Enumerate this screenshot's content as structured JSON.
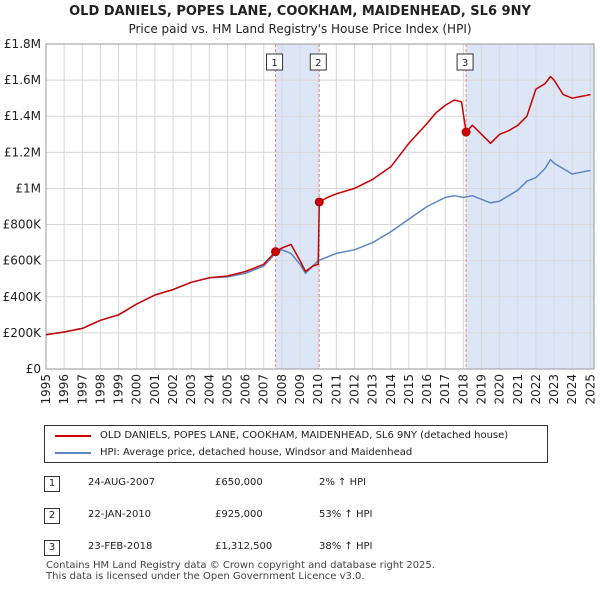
{
  "header": {
    "title": "OLD DANIELS, POPES LANE, COOKHAM, MAIDENHEAD, SL6 9NY",
    "subtitle": "Price paid vs. HM Land Registry's House Price Index (HPI)"
  },
  "legend": {
    "property_label": "OLD DANIELS, POPES LANE, COOKHAM, MAIDENHEAD, SL6 9NY (detached house)",
    "hpi_label": "HPI: Average price, detached house, Windsor and Maidenhead"
  },
  "sales": [
    {
      "num": "1",
      "date": "24-AUG-2007",
      "price": "£650,000",
      "hpi": "2% ↑ HPI"
    },
    {
      "num": "2",
      "date": "22-JAN-2010",
      "price": "£925,000",
      "hpi": "53% ↑ HPI"
    },
    {
      "num": "3",
      "date": "23-FEB-2018",
      "price": "£1,312,500",
      "hpi": "38% ↑ HPI"
    }
  ],
  "footer": {
    "line1": "Contains HM Land Registry data © Crown copyright and database right 2025.",
    "line2": "This data is licensed under the Open Government Licence v3.0."
  },
  "colors": {
    "property": "#cc0000",
    "hpi": "#5a86c5",
    "shade": "#dde6f7",
    "vline": "#e88a8a",
    "grid": "#d8d8d8"
  },
  "chart_data": {
    "type": "line",
    "title": "OLD DANIELS, POPES LANE, COOKHAM, MAIDENHEAD, SL6 9NY",
    "subtitle": "Price paid vs. HM Land Registry's House Price Index (HPI)",
    "xlabel": "",
    "ylabel": "",
    "xlim": [
      1995,
      2025.2
    ],
    "ylim": [
      0,
      1800000
    ],
    "x_ticks": [
      1995,
      1996,
      1997,
      1998,
      1999,
      2000,
      2001,
      2002,
      2003,
      2004,
      2005,
      2006,
      2007,
      2008,
      2009,
      2010,
      2011,
      2012,
      2013,
      2014,
      2015,
      2016,
      2017,
      2018,
      2019,
      2020,
      2021,
      2022,
      2023,
      2024,
      2025
    ],
    "y_ticks": [
      0,
      200000,
      400000,
      600000,
      800000,
      1000000,
      1200000,
      1400000,
      1600000,
      1800000
    ],
    "y_tick_labels": [
      "£0",
      "£200K",
      "£400K",
      "£600K",
      "£800K",
      "£1M",
      "£1.2M",
      "£1.4M",
      "£1.6M",
      "£1.8M"
    ],
    "grid": true,
    "shaded_regions": [
      [
        2007.65,
        2010.06
      ],
      [
        2018.15,
        2025.2
      ]
    ],
    "series": [
      {
        "name": "OLD DANIELS, POPES LANE, COOKHAM, MAIDENHEAD, SL6 9NY (detached house)",
        "x": [
          1995.0,
          1996.0,
          1997.0,
          1998.0,
          1999.0,
          2000.0,
          2001.0,
          2002.0,
          2003.0,
          2004.0,
          2005.0,
          2006.0,
          2007.0,
          2007.65,
          2008.0,
          2008.5,
          2009.0,
          2009.3,
          2009.7,
          2010.0,
          2010.06,
          2010.5,
          2011.0,
          2012.0,
          2013.0,
          2014.0,
          2015.0,
          2016.0,
          2016.5,
          2017.0,
          2017.5,
          2017.9,
          2018.15,
          2018.5,
          2019.0,
          2019.5,
          2020.0,
          2020.5,
          2021.0,
          2021.5,
          2022.0,
          2022.5,
          2022.8,
          2023.0,
          2023.5,
          2024.0,
          2024.5,
          2025.0
        ],
        "y": [
          190000,
          205000,
          225000,
          270000,
          300000,
          360000,
          410000,
          440000,
          480000,
          505000,
          515000,
          540000,
          580000,
          650000,
          670000,
          690000,
          600000,
          540000,
          570000,
          580000,
          925000,
          950000,
          970000,
          1000000,
          1050000,
          1120000,
          1250000,
          1360000,
          1420000,
          1460000,
          1490000,
          1480000,
          1312500,
          1350000,
          1300000,
          1250000,
          1300000,
          1320000,
          1350000,
          1400000,
          1550000,
          1580000,
          1620000,
          1600000,
          1520000,
          1500000,
          1510000,
          1520000
        ]
      },
      {
        "name": "HPI: Average price, detached house, Windsor and Maidenhead",
        "x": [
          1995.0,
          1996.0,
          1997.0,
          1998.0,
          1999.0,
          2000.0,
          2001.0,
          2002.0,
          2003.0,
          2004.0,
          2005.0,
          2006.0,
          2007.0,
          2007.65,
          2008.0,
          2008.5,
          2009.0,
          2009.3,
          2010.0,
          2011.0,
          2012.0,
          2013.0,
          2014.0,
          2015.0,
          2016.0,
          2017.0,
          2017.5,
          2018.0,
          2018.5,
          2019.0,
          2019.5,
          2020.0,
          2020.5,
          2021.0,
          2021.5,
          2022.0,
          2022.5,
          2022.8,
          2023.0,
          2023.5,
          2024.0,
          2024.5,
          2025.0
        ],
        "y": [
          190000,
          205000,
          225000,
          270000,
          300000,
          360000,
          410000,
          440000,
          480000,
          505000,
          510000,
          530000,
          570000,
          640000,
          660000,
          640000,
          580000,
          530000,
          600000,
          640000,
          660000,
          700000,
          760000,
          830000,
          900000,
          950000,
          960000,
          950000,
          960000,
          940000,
          920000,
          930000,
          960000,
          990000,
          1040000,
          1060000,
          1110000,
          1160000,
          1140000,
          1110000,
          1080000,
          1090000,
          1100000
        ]
      }
    ],
    "sale_points": [
      {
        "label": "1",
        "x": 2007.65,
        "y": 650000
      },
      {
        "label": "2",
        "x": 2010.06,
        "y": 925000
      },
      {
        "label": "3",
        "x": 2018.15,
        "y": 1312500
      }
    ]
  }
}
